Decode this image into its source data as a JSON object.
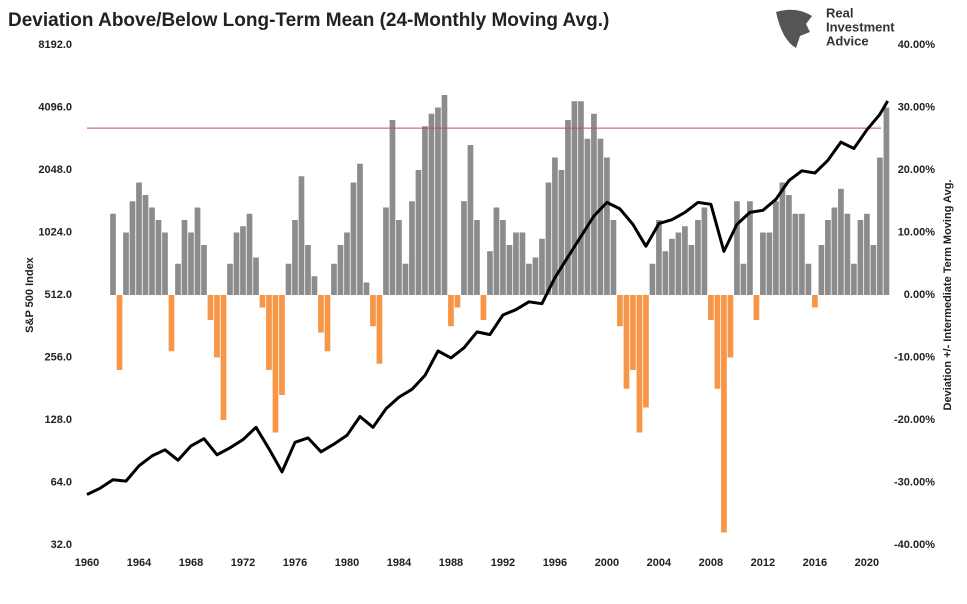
{
  "logo_text": [
    "Real",
    "Investment",
    "Advice"
  ],
  "chart_data": {
    "type": "combo",
    "title": "Deviation Above/Below Long-Term Mean (24-Monthly Moving Avg.)",
    "y_label": "S&P 500 Index",
    "y2_label": "Deviation +/- Intermediate Term Moving Avg.",
    "xlim": [
      1960,
      2021.7
    ],
    "xticks": [
      1960,
      1964,
      1968,
      1972,
      1976,
      1980,
      1984,
      1988,
      1992,
      1996,
      2000,
      2004,
      2008,
      2012,
      2016,
      2020
    ],
    "ylog": true,
    "ylim": [
      32,
      8192
    ],
    "yticks": [
      {
        "value": 32,
        "label": "32.0"
      },
      {
        "value": 64,
        "label": "64.0"
      },
      {
        "value": 128,
        "label": "128.0"
      },
      {
        "value": 256,
        "label": "256.0"
      },
      {
        "value": 512,
        "label": "512.0"
      },
      {
        "value": 1024,
        "label": "1024.0"
      },
      {
        "value": 2048,
        "label": "2048.0"
      },
      {
        "value": 4096,
        "label": "4096.0"
      },
      {
        "value": 8192,
        "label": "8192.0"
      }
    ],
    "y2lim": [
      -40,
      40
    ],
    "y2ticks": [
      {
        "value": -40,
        "label": "-40.00%"
      },
      {
        "value": -30,
        "label": "-30.00%"
      },
      {
        "value": -20,
        "label": "-20.00%"
      },
      {
        "value": -10,
        "label": "-10.00%"
      },
      {
        "value": 0,
        "label": "0.00%"
      },
      {
        "value": 10,
        "label": "10.00%"
      },
      {
        "value": 20,
        "label": "20.00%"
      },
      {
        "value": 30,
        "label": "30.00%"
      },
      {
        "value": 40,
        "label": "40.00%"
      }
    ],
    "reference_line": {
      "value": 26.7,
      "axis": "y2",
      "color": "#c0504d"
    },
    "series": [
      {
        "kind": "bar",
        "axis": "y2",
        "color": "#8c8c8c",
        "negative_color": "#f79646",
        "x": [
          1962,
          1962.5,
          1963,
          1963.5,
          1964,
          1964.5,
          1965,
          1965.5,
          1966,
          1966.5,
          1967,
          1967.5,
          1968,
          1968.5,
          1969,
          1969.5,
          1970,
          1970.5,
          1971,
          1971.5,
          1972,
          1972.5,
          1973,
          1973.5,
          1974,
          1974.5,
          1975,
          1975.5,
          1976,
          1976.5,
          1977,
          1977.5,
          1978,
          1978.5,
          1979,
          1979.5,
          1980,
          1980.5,
          1981,
          1981.5,
          1982,
          1982.5,
          1983,
          1983.5,
          1984,
          1984.5,
          1985,
          1985.5,
          1986,
          1986.5,
          1987,
          1987.5,
          1988,
          1988.5,
          1989,
          1989.5,
          1990,
          1990.5,
          1991,
          1991.5,
          1992,
          1992.5,
          1993,
          1993.5,
          1994,
          1994.5,
          1995,
          1995.5,
          1996,
          1996.5,
          1997,
          1997.5,
          1998,
          1998.5,
          1999,
          1999.5,
          2000,
          2000.5,
          2001,
          2001.5,
          2002,
          2002.5,
          2003,
          2003.5,
          2004,
          2004.5,
          2005,
          2005.5,
          2006,
          2006.5,
          2007,
          2007.5,
          2008,
          2008.5,
          2009,
          2009.5,
          2010,
          2010.5,
          2011,
          2011.5,
          2012,
          2012.5,
          2013,
          2013.5,
          2014,
          2014.5,
          2015,
          2015.5,
          2016,
          2016.5,
          2017,
          2017.5,
          2018,
          2018.5,
          2019,
          2019.5,
          2020,
          2020.5,
          2021,
          2021.5
        ],
        "values": [
          13,
          -12,
          10,
          15,
          18,
          16,
          14,
          12,
          10,
          -9,
          5,
          12,
          10,
          14,
          8,
          -4,
          -10,
          -20,
          5,
          10,
          11,
          13,
          6,
          -2,
          -12,
          -22,
          -16,
          5,
          12,
          19,
          8,
          3,
          -6,
          -9,
          5,
          8,
          10,
          18,
          21,
          2,
          -5,
          -11,
          14,
          28,
          12,
          5,
          15,
          20,
          27,
          29,
          30,
          32,
          -5,
          -2,
          15,
          24,
          12,
          -4,
          7,
          14,
          12,
          8,
          10,
          10,
          5,
          6,
          9,
          18,
          22,
          20,
          28,
          31,
          31,
          25,
          29,
          25,
          22,
          12,
          -5,
          -15,
          -12,
          -22,
          -18,
          5,
          12,
          7,
          9,
          10,
          11,
          8,
          12,
          14,
          -4,
          -15,
          -38,
          -10,
          15,
          5,
          15,
          -4,
          10,
          10,
          15,
          18,
          16,
          13,
          13,
          5,
          -2,
          8,
          12,
          14,
          17,
          13,
          5,
          12,
          13,
          8,
          22,
          30
        ]
      },
      {
        "kind": "line",
        "color": "#000000",
        "x": [
          1960,
          1961,
          1962,
          1963,
          1964,
          1965,
          1966,
          1967,
          1968,
          1969,
          1970,
          1971,
          1972,
          1973,
          1974,
          1975,
          1976,
          1977,
          1978,
          1979,
          1980,
          1981,
          1982,
          1983,
          1984,
          1985,
          1986,
          1987,
          1988,
          1989,
          1990,
          1991,
          1992,
          1993,
          1994,
          1995,
          1996,
          1997,
          1998,
          1999,
          2000,
          2001,
          2002,
          2003,
          2004,
          2005,
          2006,
          2007,
          2008,
          2009,
          2010,
          2011,
          2012,
          2013,
          2014,
          2015,
          2016,
          2017,
          2018,
          2019,
          2020,
          2021,
          2021.6
        ],
        "values": [
          56,
          60,
          66,
          65,
          77,
          86,
          92,
          82,
          96,
          104,
          87,
          94,
          103,
          118,
          93,
          72,
          100,
          105,
          90,
          98,
          108,
          133,
          118,
          145,
          165,
          180,
          210,
          275,
          255,
          285,
          340,
          330,
          410,
          435,
          475,
          465,
          620,
          780,
          980,
          1230,
          1430,
          1330,
          1120,
          880,
          1130,
          1180,
          1280,
          1430,
          1400,
          830,
          1120,
          1280,
          1310,
          1480,
          1820,
          2030,
          1980,
          2280,
          2790,
          2600,
          3200,
          3800,
          4400
        ]
      }
    ]
  }
}
